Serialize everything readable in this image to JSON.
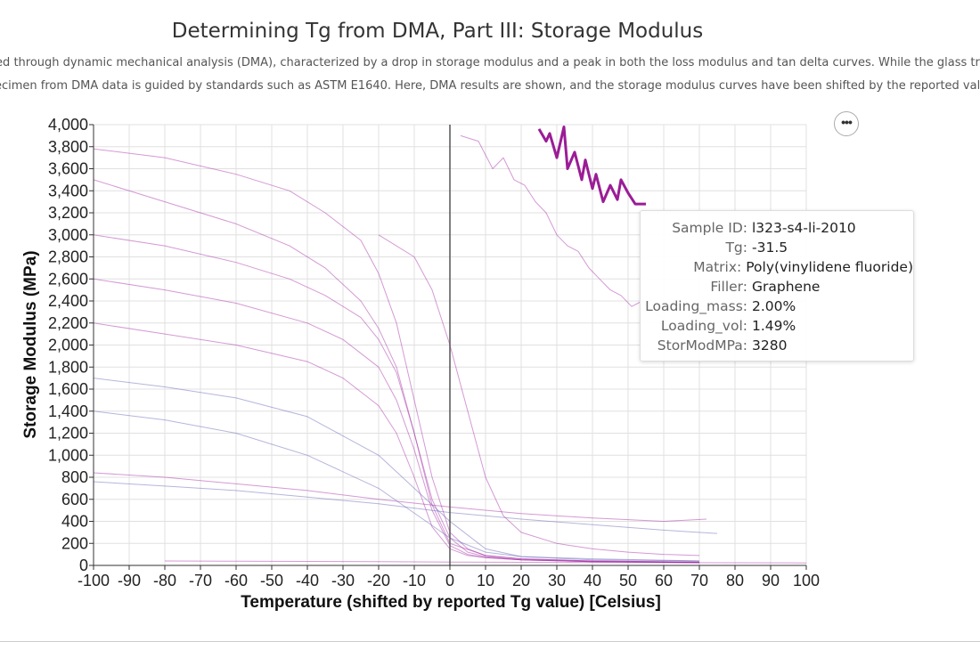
{
  "title": "Determining Tg from DMA, Part III: Storage Modulus",
  "description": {
    "line1": "red through dynamic mechanical analysis (DMA), characterized by a drop in storage modulus and a peak in both the loss modulus and tan delta curves. While the glass transit",
    "line2": "ecimen from DMA data is guided by standards such as ASTM E1640. Here, DMA results are shown, and the storage modulus curves have been shifted by the reported value o"
  },
  "tooltip": {
    "rows": [
      {
        "key": "Sample ID:",
        "value": "l323-s4-li-2010"
      },
      {
        "key": "Tg:",
        "value": "-31.5"
      },
      {
        "key": "Matrix:",
        "value": "Poly(vinylidene fluoride)"
      },
      {
        "key": "Filler:",
        "value": "Graphene"
      },
      {
        "key": "Loading_mass:",
        "value": "2.00%"
      },
      {
        "key": "Loading_vol:",
        "value": "1.49%"
      },
      {
        "key": "StorModMPa:",
        "value": "3280"
      }
    ]
  },
  "chart_data": {
    "type": "line",
    "xlabel": "Temperature (shifted by reported Tg value) [Celsius]",
    "ylabel": "Storage Modulus (MPa)",
    "xlim": [
      -100,
      100
    ],
    "ylim": [
      0,
      4000
    ],
    "xticks": [
      -100,
      -90,
      -80,
      -70,
      -60,
      -50,
      -40,
      -30,
      -20,
      -10,
      0,
      10,
      20,
      30,
      40,
      50,
      60,
      70,
      80,
      90,
      100
    ],
    "yticks": [
      0,
      200,
      400,
      600,
      800,
      1000,
      1200,
      1400,
      1600,
      1800,
      2000,
      2200,
      2400,
      2600,
      2800,
      3000,
      3200,
      3400,
      3600,
      3800,
      4000
    ],
    "xtick_labels": [
      "-100",
      "-90",
      "-80",
      "-70",
      "-60",
      "-50",
      "-40",
      "-30",
      "-20",
      "-10",
      "0",
      "10",
      "20",
      "30",
      "40",
      "50",
      "60",
      "70",
      "80",
      "90",
      "100"
    ],
    "ytick_labels": [
      "0",
      "200",
      "400",
      "600",
      "800",
      "1,000",
      "1,200",
      "1,400",
      "1,600",
      "1,800",
      "2,000",
      "2,200",
      "2,400",
      "2,600",
      "2,800",
      "3,000",
      "3,200",
      "3,400",
      "3,600",
      "3,800",
      "4,000"
    ],
    "grid": true,
    "reference_line_x": 0,
    "colors": {
      "line": "#a020a0",
      "line_alt": "#5a5ab4",
      "highlight": "#9b1c96",
      "grid": "#e0e0e0",
      "refline": "#555555"
    },
    "series": [
      {
        "x": [
          25,
          27,
          28,
          30,
          32,
          33,
          35,
          37,
          38,
          40,
          41,
          43,
          45,
          47,
          48,
          50,
          52,
          55
        ],
        "values": [
          3960,
          3850,
          3920,
          3700,
          3980,
          3600,
          3750,
          3500,
          3680,
          3420,
          3550,
          3300,
          3450,
          3320,
          3500,
          3380,
          3280,
          3280
        ]
      },
      {
        "x": [
          3,
          8,
          12,
          15,
          18,
          21,
          24,
          27,
          30,
          33,
          36,
          39,
          42,
          45,
          48,
          51,
          54,
          57,
          60
        ],
        "values": [
          3900,
          3850,
          3600,
          3700,
          3500,
          3450,
          3300,
          3200,
          3000,
          2900,
          2850,
          2700,
          2600,
          2500,
          2450,
          2350,
          2400,
          2300,
          2250
        ]
      },
      {
        "x": [
          -100,
          -80,
          -60,
          -45,
          -35,
          -25,
          -20,
          -15,
          -10,
          -5,
          0,
          5,
          10,
          20,
          40,
          70
        ],
        "values": [
          3780,
          3700,
          3550,
          3400,
          3200,
          2950,
          2650,
          2200,
          1500,
          800,
          300,
          150,
          90,
          60,
          40,
          30
        ]
      },
      {
        "x": [
          -100,
          -80,
          -60,
          -45,
          -35,
          -25,
          -20,
          -15,
          -10,
          -5,
          0,
          5,
          10,
          20,
          40,
          70
        ],
        "values": [
          3000,
          2900,
          2750,
          2600,
          2450,
          2250,
          2050,
          1750,
          1200,
          600,
          250,
          120,
          80,
          50,
          35,
          25
        ]
      },
      {
        "x": [
          -100,
          -80,
          -60,
          -40,
          -30,
          -20,
          -15,
          -10,
          -5,
          0,
          5,
          10,
          20,
          40,
          70
        ],
        "values": [
          2600,
          2500,
          2380,
          2200,
          2050,
          1800,
          1500,
          1050,
          500,
          180,
          100,
          70,
          50,
          35,
          25
        ]
      },
      {
        "x": [
          -100,
          -80,
          -60,
          -45,
          -35,
          -25,
          -20,
          -15,
          -10,
          -5,
          0,
          10,
          20,
          40,
          70
        ],
        "values": [
          3500,
          3300,
          3100,
          2900,
          2700,
          2400,
          2150,
          1800,
          1200,
          550,
          200,
          90,
          60,
          40,
          30
        ]
      },
      {
        "x": [
          -100,
          -80,
          -60,
          -40,
          -30,
          -20,
          -15,
          -10,
          -5,
          0,
          5,
          10,
          20,
          40,
          70
        ],
        "values": [
          2200,
          2100,
          2000,
          1850,
          1700,
          1450,
          1200,
          800,
          350,
          150,
          90,
          70,
          50,
          35,
          25
        ]
      },
      {
        "x": [
          -20,
          -10,
          -5,
          0,
          5,
          10,
          15,
          20,
          30,
          40,
          50,
          60,
          70
        ],
        "values": [
          3000,
          2800,
          2500,
          2000,
          1400,
          800,
          450,
          300,
          200,
          150,
          120,
          100,
          90
        ]
      },
      {
        "x": [
          -100,
          -80,
          -60,
          -40,
          -20,
          0,
          20,
          40,
          60,
          75
        ],
        "values": [
          760,
          720,
          680,
          620,
          560,
          480,
          420,
          370,
          320,
          290
        ]
      },
      {
        "x": [
          -100,
          -80,
          -60,
          -40,
          -20,
          0,
          20,
          40,
          60,
          72
        ],
        "values": [
          840,
          800,
          740,
          680,
          600,
          530,
          470,
          430,
          400,
          420
        ]
      },
      {
        "x": [
          -100,
          -80,
          -60,
          -40,
          -20,
          0,
          10,
          20,
          40,
          70
        ],
        "values": [
          1400,
          1320,
          1200,
          1000,
          700,
          250,
          120,
          80,
          50,
          40
        ]
      },
      {
        "x": [
          -100,
          -80,
          -60,
          -40,
          -20,
          0,
          10,
          20,
          40,
          70
        ],
        "values": [
          1700,
          1620,
          1520,
          1350,
          1000,
          400,
          150,
          80,
          60,
          40
        ]
      },
      {
        "x": [
          -80,
          -60,
          -40,
          -20,
          0,
          20,
          40,
          60,
          80,
          100
        ],
        "values": [
          40,
          38,
          36,
          34,
          30,
          28,
          26,
          25,
          24,
          23
        ]
      }
    ]
  }
}
